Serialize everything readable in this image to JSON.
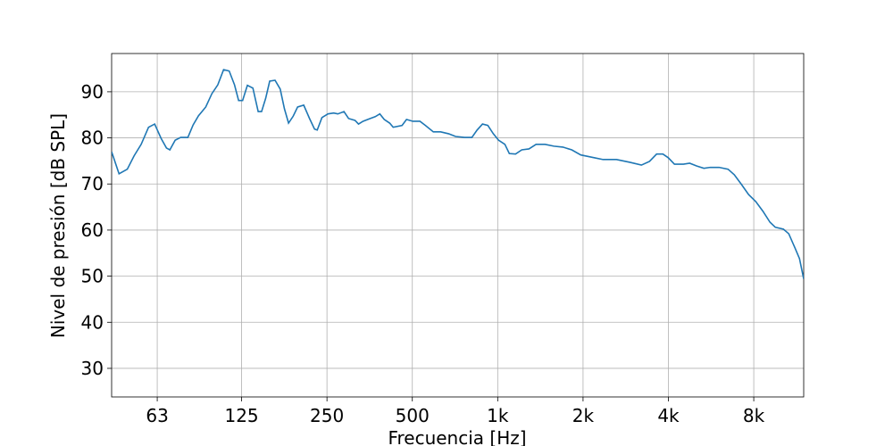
{
  "chart_data": {
    "type": "line",
    "x_label": "Frecuencia [Hz]",
    "y_label": "Nivel de presión [dB SPL]",
    "xscale": "log",
    "grid": true,
    "xlim": [
      43.5,
      12000
    ],
    "ylim": [
      23.8,
      98.3
    ],
    "xticks": [
      63,
      125,
      250,
      500,
      {
        "value": 1000,
        "label": "1k"
      },
      {
        "value": 2000,
        "label": "2k"
      },
      {
        "value": 4000,
        "label": "4k"
      },
      {
        "value": 8000,
        "label": "8k"
      }
    ],
    "yticks": [
      30,
      40,
      50,
      60,
      70,
      80,
      90
    ],
    "x": [
      43.5,
      46.2,
      49.4,
      52.2,
      55.3,
      58.7,
      61.7,
      65.0,
      67.9,
      69.8,
      72.9,
      76.2,
      80.8,
      84.3,
      88.1,
      93.4,
      98.2,
      103,
      108,
      113,
      118,
      122,
      126,
      131,
      137,
      143,
      147,
      152,
      157,
      164,
      171,
      177,
      183,
      190,
      197,
      207,
      217,
      226,
      231,
      240,
      252,
      264,
      273,
      287,
      298,
      314,
      323,
      335,
      355,
      370,
      384,
      398,
      416,
      428,
      460,
      477,
      502,
      532,
      556,
      593,
      629,
      671,
      711,
      765,
      811,
      846,
      884,
      923,
      965,
      1007,
      1060,
      1099,
      1156,
      1216,
      1289,
      1366,
      1468,
      1579,
      1698,
      1825,
      1963,
      2189,
      2353,
      2623,
      2924,
      3213,
      3430,
      3635,
      3824,
      3994,
      4201,
      4519,
      4754,
      5038,
      5337,
      5617,
      6038,
      6493,
      6830,
      7239,
      7670,
      8128,
      8614,
      9127,
      9533,
      10176,
      10630,
      11183,
      11598,
      12000
    ],
    "series": [
      {
        "color": "#1f77b4",
        "values": [
          77.0,
          72.2,
          73.2,
          76.1,
          78.6,
          82.3,
          83.0,
          79.9,
          77.8,
          77.4,
          79.5,
          80.1,
          80.1,
          82.8,
          84.8,
          86.7,
          89.6,
          91.5,
          94.8,
          94.5,
          91.5,
          88.1,
          88.1,
          91.4,
          90.8,
          85.7,
          85.7,
          88.6,
          92.3,
          92.5,
          90.6,
          86.3,
          83.2,
          84.7,
          86.7,
          87.1,
          84.2,
          81.9,
          81.7,
          84.4,
          85.2,
          85.4,
          85.2,
          85.7,
          84.2,
          83.8,
          83.0,
          83.6,
          84.2,
          84.6,
          85.2,
          84.0,
          83.2,
          82.3,
          82.7,
          84.0,
          83.6,
          83.6,
          82.7,
          81.3,
          81.3,
          80.9,
          80.3,
          80.1,
          80.1,
          81.7,
          83.0,
          82.7,
          80.9,
          79.5,
          78.6,
          76.6,
          76.5,
          77.4,
          77.6,
          78.6,
          78.6,
          78.2,
          78.0,
          77.4,
          76.3,
          75.7,
          75.3,
          75.3,
          74.7,
          74.1,
          74.9,
          76.5,
          76.5,
          75.7,
          74.3,
          74.3,
          74.5,
          73.9,
          73.4,
          73.6,
          73.6,
          73.2,
          72.0,
          69.9,
          67.7,
          66.2,
          64.1,
          61.7,
          60.6,
          60.2,
          59.2,
          56.1,
          53.8,
          49.4
        ]
      }
    ]
  }
}
